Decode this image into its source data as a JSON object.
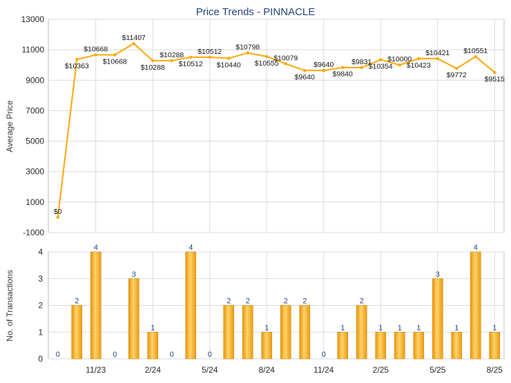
{
  "chart_data": [
    {
      "type": "line",
      "title": "Price Trends - PINNACLE",
      "ylabel": "Average Price",
      "ylim": [
        -1000,
        13000
      ],
      "yticks": [
        -1000,
        1000,
        3000,
        5000,
        7000,
        9000,
        11000,
        13000
      ],
      "grid": true,
      "series": [
        {
          "color": "#FFA500",
          "values": [
            0,
            10363,
            10668,
            10668,
            11407,
            10288,
            10288,
            10512,
            10512,
            10440,
            10798,
            10555,
            10079,
            9640,
            9640,
            9840,
            9831,
            10354,
            10000,
            10423,
            10421,
            9772,
            10551,
            9515
          ],
          "labels": [
            "$0",
            "$10363",
            "$10668",
            "$10668",
            "$11407",
            "$10288",
            "$10288",
            "$10512",
            "$10512",
            "$10440",
            "$10798",
            "$10555",
            "$10079",
            "$9640",
            "$9640",
            "$9840",
            "$9831",
            "$10354",
            "$10000",
            "$10423",
            "$10421",
            "$9772",
            "$10551",
            "$9515"
          ]
        }
      ]
    },
    {
      "type": "bar",
      "ylabel": "No. of Transactions",
      "ylim": [
        0,
        4
      ],
      "yticks": [
        0,
        1,
        2,
        3,
        4
      ],
      "grid": true,
      "categories": [
        "",
        "",
        "11/23",
        "",
        "",
        "2/24",
        "",
        "",
        "5/24",
        "",
        "",
        "8/24",
        "",
        "",
        "11/24",
        "",
        "",
        "2/25",
        "",
        "",
        "5/25",
        "",
        "",
        "8/25"
      ],
      "series": [
        {
          "color": "#F5A81E",
          "values": [
            0,
            2,
            4,
            0,
            3,
            1,
            0,
            4,
            0,
            2,
            2,
            1,
            2,
            2,
            0,
            1,
            2,
            1,
            1,
            1,
            3,
            1,
            4,
            1
          ]
        }
      ]
    }
  ],
  "colors": {
    "line": "#FFA500",
    "bar": "#F5A81E",
    "bar_label": "#1F3F75",
    "title": "#1F3F75",
    "grid": "#D9D9D9"
  }
}
